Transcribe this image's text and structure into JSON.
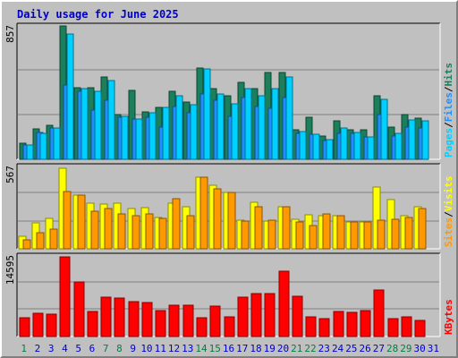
{
  "chart_data": {
    "type": "bar",
    "title": "Daily usage for June 2025",
    "colors": {
      "hits": "#1a7f5a",
      "files": "#1e90ff",
      "pages": "#00d0ff",
      "visits": "#ffff00",
      "sites": "#ff9900",
      "kbytes": "#ff0000",
      "weekend_day": "#008040",
      "weekday": "#0000cc"
    },
    "categories": [
      "1",
      "2",
      "3",
      "4",
      "5",
      "6",
      "7",
      "8",
      "9",
      "10",
      "11",
      "12",
      "13",
      "14",
      "15",
      "16",
      "17",
      "18",
      "19",
      "20",
      "21",
      "22",
      "23",
      "24",
      "25",
      "26",
      "27",
      "28",
      "29",
      "30",
      "31"
    ],
    "weekend_days": [
      "1",
      "7",
      "8",
      "14",
      "15",
      "21",
      "22",
      "28",
      "29"
    ],
    "panels": [
      {
        "id": "hits-files-pages",
        "ymax_label": "857",
        "ymax": 857,
        "right_label": [
          {
            "text": "Pages",
            "color": "#00d0ff"
          },
          {
            "text": "/",
            "color": "#000000"
          },
          {
            "text": "Files",
            "color": "#1e90ff"
          },
          {
            "text": "/",
            "color": "#000000"
          },
          {
            "text": "Hits",
            "color": "#1a7f5a"
          }
        ],
        "series": [
          {
            "name": "Hits",
            "values": [
              105,
              195,
              220,
              860,
              465,
              465,
              535,
              290,
              445,
              305,
              335,
              440,
              370,
              590,
              460,
              410,
              500,
              460,
              560,
              560,
              190,
              270,
              150,
              250,
              190,
              190,
              410,
              210,
              290,
              265,
              0
            ]
          },
          {
            "name": "Files",
            "values": [
              95,
              175,
              200,
              480,
              440,
              320,
              380,
              270,
              260,
              270,
              210,
              340,
              300,
              420,
              380,
              280,
              400,
              340,
              330,
              400,
              170,
              160,
              120,
              170,
              170,
              145,
              290,
              150,
              210,
              200,
              0
            ]
          },
          {
            "name": "Pages",
            "values": [
              95,
              170,
              200,
              810,
              460,
              440,
              510,
              280,
              260,
              300,
              335,
              410,
              355,
              585,
              425,
              360,
              455,
              410,
              460,
              535,
              180,
              165,
              130,
              200,
              175,
              145,
              390,
              170,
              255,
              250,
              0
            ]
          }
        ]
      },
      {
        "id": "visits-sites",
        "ymax_label": "567",
        "ymax": 567,
        "right_label": [
          {
            "text": "Sites",
            "color": "#ff9900"
          },
          {
            "text": "/",
            "color": "#000000"
          },
          {
            "text": "Visits",
            "color": "#ffff00"
          }
        ],
        "series": [
          {
            "name": "Visits",
            "values": [
              90,
              180,
              210,
              560,
              375,
              320,
              310,
              320,
              280,
              285,
              220,
              320,
              295,
              500,
              440,
              390,
              200,
              325,
              195,
              290,
              205,
              235,
              230,
              230,
              190,
              190,
              430,
              345,
              230,
              290,
              0
            ]
          },
          {
            "name": "Sites",
            "values": [
              60,
              110,
              140,
              400,
              375,
              260,
              280,
              240,
              230,
              240,
              210,
              350,
              230,
              500,
              420,
              390,
              195,
              290,
              200,
              290,
              185,
              165,
              240,
              230,
              185,
              185,
              200,
              205,
              215,
              280,
              0
            ]
          }
        ]
      },
      {
        "id": "kbytes",
        "ymax_label": "14595",
        "ymax": 14595,
        "right_label": [
          {
            "text": "KBytes",
            "color": "#ff0000"
          }
        ],
        "series": [
          {
            "name": "KBytes",
            "values": [
              3500,
              4200,
              4100,
              14600,
              10000,
              4600,
              7200,
              7100,
              6400,
              6300,
              4700,
              5800,
              5800,
              3500,
              5500,
              3600,
              7200,
              7900,
              7800,
              12000,
              7300,
              3600,
              3300,
              4600,
              4500,
              4700,
              8600,
              3300,
              3600,
              3000,
              0
            ]
          }
        ]
      }
    ]
  }
}
